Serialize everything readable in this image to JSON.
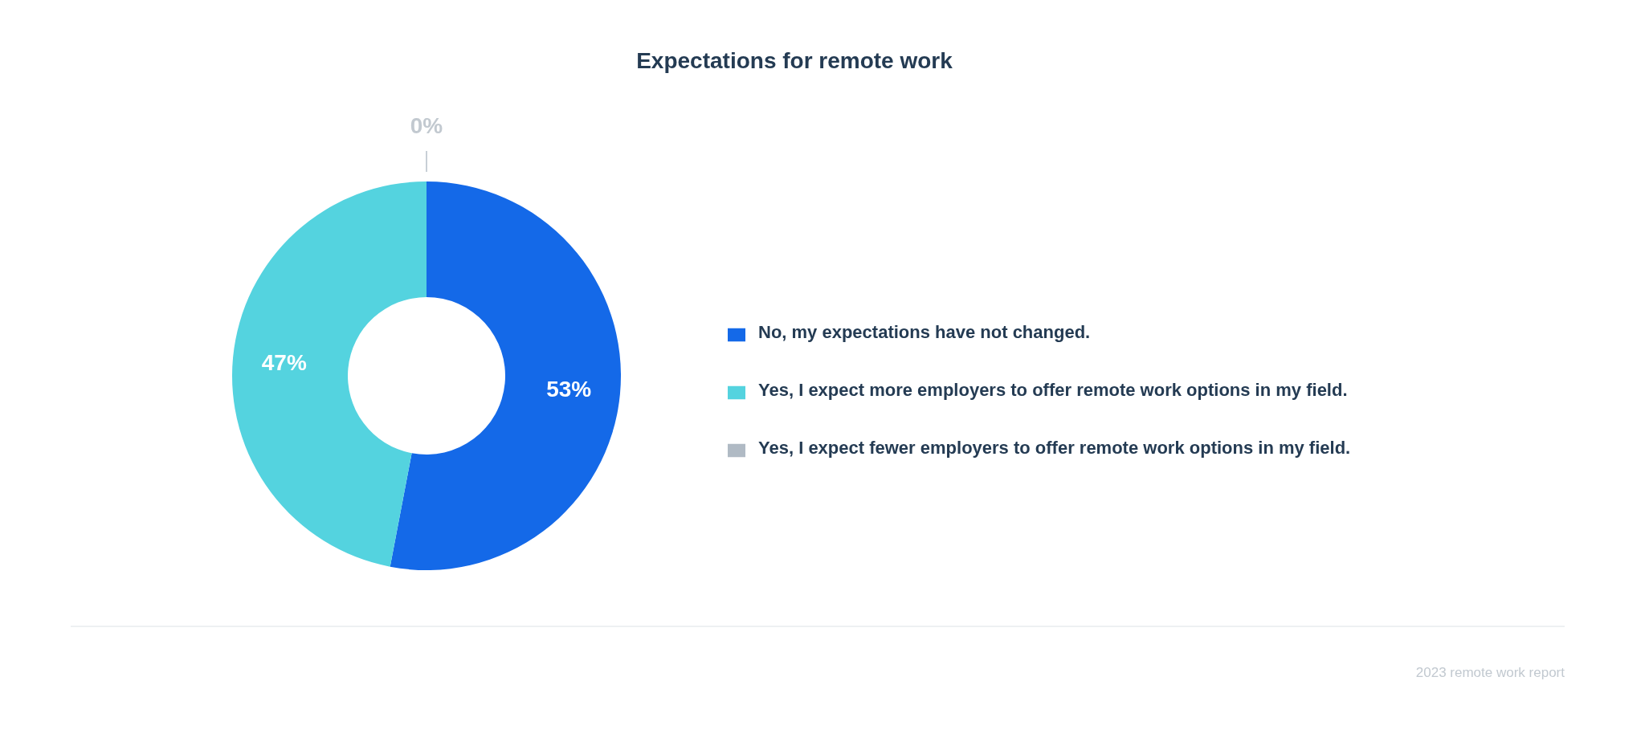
{
  "chart_data": {
    "type": "donut",
    "title": "Expectations for remote work",
    "categories": [
      "No, my expectations have not changed.",
      "Yes, I expect more employers to offer remote work options in my field.",
      "Yes, I expect fewer employers to offer remote work options in my field."
    ],
    "values": [
      53,
      47,
      0
    ],
    "value_labels": [
      "53%",
      "47%",
      "0%"
    ],
    "colors": [
      "#1469e8",
      "#54d3df",
      "#b0bac4"
    ],
    "legend": "right",
    "annotations": [
      "2023 remote work report"
    ]
  }
}
